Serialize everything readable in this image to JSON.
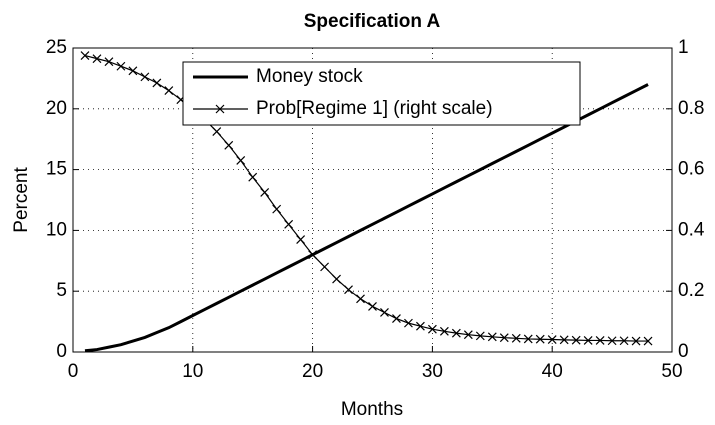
{
  "chart_data": {
    "type": "line",
    "title": "Specification A",
    "xlabel": "Months",
    "ylabel": "Percent",
    "x": [
      1,
      2,
      3,
      4,
      5,
      6,
      7,
      8,
      9,
      10,
      11,
      12,
      13,
      14,
      15,
      16,
      17,
      18,
      19,
      20,
      21,
      22,
      23,
      24,
      25,
      26,
      27,
      28,
      29,
      30,
      31,
      32,
      33,
      34,
      35,
      36,
      37,
      38,
      39,
      40,
      41,
      42,
      43,
      44,
      45,
      46,
      47,
      48
    ],
    "series": [
      {
        "name": "Money stock",
        "color": "#000000",
        "marker": "none",
        "values": [
          0.1,
          0.2,
          0.4,
          0.6,
          0.9,
          1.2,
          1.6,
          2.0,
          2.5,
          3.0,
          3.5,
          4.0,
          4.5,
          5.0,
          5.5,
          6.0,
          6.5,
          7.0,
          7.5,
          8.0,
          8.5,
          9.0,
          9.5,
          10.0,
          10.5,
          11.0,
          11.5,
          12.0,
          12.5,
          13.0,
          13.5,
          14.0,
          14.5,
          15.0,
          15.5,
          16.0,
          16.5,
          17.0,
          17.5,
          18.0,
          18.5,
          19.0,
          19.5,
          20.0,
          20.5,
          21.0,
          21.5,
          22.0
        ]
      },
      {
        "name": "Prob[Regime 1] (right scale)",
        "color": "#000000",
        "marker": "x",
        "axis": "y2",
        "values": [
          0.975,
          0.965,
          0.955,
          0.94,
          0.925,
          0.905,
          0.885,
          0.86,
          0.83,
          0.8,
          0.765,
          0.725,
          0.68,
          0.63,
          0.575,
          0.525,
          0.47,
          0.42,
          0.37,
          0.32,
          0.28,
          0.24,
          0.205,
          0.175,
          0.15,
          0.13,
          0.11,
          0.095,
          0.085,
          0.075,
          0.068,
          0.062,
          0.057,
          0.053,
          0.05,
          0.047,
          0.045,
          0.043,
          0.042,
          0.041,
          0.04,
          0.039,
          0.038,
          0.038,
          0.037,
          0.037,
          0.036,
          0.036
        ]
      }
    ],
    "xlim": [
      0,
      50
    ],
    "xticks": [
      0,
      10,
      20,
      30,
      40,
      50
    ],
    "ylim": [
      0,
      25
    ],
    "yticks": [
      0,
      5,
      10,
      15,
      20,
      25
    ],
    "y2lim": [
      0,
      1
    ],
    "y2ticks": [
      0,
      0.2,
      0.4,
      0.6,
      0.8,
      1
    ],
    "grid": true,
    "legend": "top"
  }
}
